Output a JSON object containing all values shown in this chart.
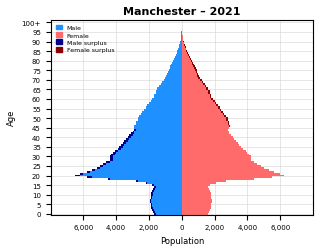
{
  "title": "Manchester – 2021",
  "xlabel": "Population",
  "ylabel": "Age",
  "xlim": [
    -8000,
    8000
  ],
  "xticklabels": [
    "6,000",
    "4,000",
    "2,000",
    "0",
    "2,000",
    "4,000",
    "6,000"
  ],
  "male": [
    1700,
    1750,
    1800,
    1850,
    1900,
    1900,
    1950,
    1950,
    1900,
    1900,
    1850,
    1850,
    1800,
    1750,
    1700,
    1800,
    2200,
    2800,
    4500,
    5800,
    6500,
    6200,
    5800,
    5500,
    5200,
    5000,
    4800,
    4600,
    4400,
    4400,
    4400,
    4300,
    4200,
    4100,
    3900,
    3800,
    3700,
    3600,
    3500,
    3400,
    3300,
    3200,
    3100,
    3000,
    2900,
    2900,
    2900,
    2800,
    2800,
    2700,
    2700,
    2600,
    2500,
    2400,
    2300,
    2200,
    2200,
    2100,
    2000,
    1900,
    1800,
    1700,
    1700,
    1600,
    1600,
    1500,
    1500,
    1400,
    1300,
    1200,
    1100,
    1000,
    950,
    900,
    850,
    800,
    750,
    700,
    650,
    600,
    550,
    480,
    420,
    370,
    320,
    270,
    230,
    190,
    160,
    130,
    100,
    80,
    60,
    45,
    30,
    20,
    15,
    10,
    7,
    5,
    3,
    1
  ],
  "female": [
    1600,
    1650,
    1700,
    1750,
    1800,
    1800,
    1850,
    1850,
    1800,
    1800,
    1750,
    1750,
    1700,
    1650,
    1600,
    1700,
    2100,
    2700,
    4400,
    5500,
    6200,
    6000,
    5600,
    5300,
    5000,
    4800,
    4600,
    4400,
    4200,
    4200,
    4200,
    4100,
    4000,
    3900,
    3700,
    3600,
    3500,
    3400,
    3300,
    3200,
    3100,
    3000,
    2900,
    2900,
    2800,
    2900,
    2950,
    2900,
    2900,
    2800,
    2800,
    2700,
    2600,
    2500,
    2400,
    2300,
    2300,
    2200,
    2100,
    2000,
    1900,
    1800,
    1800,
    1700,
    1700,
    1600,
    1600,
    1500,
    1400,
    1300,
    1200,
    1100,
    1050,
    1000,
    950,
    900,
    850,
    800,
    750,
    700,
    650,
    580,
    520,
    460,
    400,
    340,
    280,
    230,
    190,
    150,
    120,
    90,
    70,
    50,
    35,
    25,
    18,
    13,
    9,
    6,
    4,
    2
  ],
  "color_male": "#1e90ff",
  "color_female": "#ff6b6b",
  "color_male_surplus": "#00008b",
  "color_female_surplus": "#8b0000",
  "ytick_ages": [
    0,
    5,
    10,
    15,
    20,
    25,
    30,
    35,
    40,
    45,
    50,
    55,
    60,
    65,
    70,
    75,
    80,
    85,
    90,
    95,
    100
  ],
  "legend_labels": [
    "Male",
    "Female",
    "Male surplus",
    "Female surplus"
  ]
}
